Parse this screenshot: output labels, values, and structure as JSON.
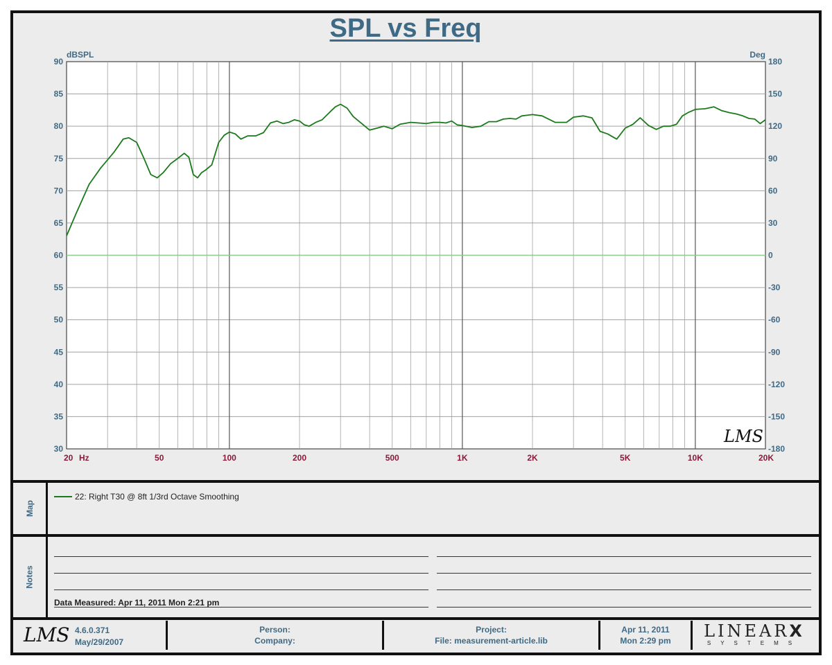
{
  "title": "SPL vs Freq",
  "chart_data": {
    "type": "line",
    "title": "SPL vs Freq",
    "xscale": "log",
    "xlim": [
      20,
      20000
    ],
    "ylim": [
      30,
      90
    ],
    "y2lim": [
      -180,
      180
    ],
    "ylabel": "dBSPL",
    "y2label": "Deg",
    "x_ticks": [
      {
        "value": 20,
        "label": "20"
      },
      {
        "value": 50,
        "label": "50"
      },
      {
        "value": 100,
        "label": "100"
      },
      {
        "value": 200,
        "label": "200"
      },
      {
        "value": 500,
        "label": "500"
      },
      {
        "value": 1000,
        "label": "1K"
      },
      {
        "value": 2000,
        "label": "2K"
      },
      {
        "value": 5000,
        "label": "5K"
      },
      {
        "value": 10000,
        "label": "10K"
      },
      {
        "value": 20000,
        "label": "20K"
      }
    ],
    "x_unit_label": "Hz",
    "y_ticks": [
      90,
      85,
      80,
      75,
      70,
      65,
      60,
      55,
      50,
      45,
      40,
      35,
      30
    ],
    "y2_ticks": [
      180,
      150,
      120,
      90,
      60,
      30,
      0,
      -30,
      -60,
      -90,
      -120,
      -150,
      -180
    ],
    "reference_line_y": 60,
    "grid": true,
    "series": [
      {
        "name": "22: Right T30 @ 8ft 1/3rd Octave Smoothing",
        "color": "#1a7a1a",
        "x": [
          20,
          22,
          25,
          28,
          32,
          35,
          37,
          40,
          43,
          46,
          49,
          52,
          56,
          60,
          64,
          67,
          70,
          73,
          76,
          79,
          84,
          90,
          95,
          100,
          106,
          112,
          120,
          130,
          140,
          150,
          160,
          170,
          180,
          190,
          200,
          210,
          220,
          235,
          250,
          270,
          285,
          300,
          320,
          340,
          370,
          400,
          430,
          460,
          500,
          540,
          600,
          650,
          700,
          750,
          800,
          850,
          900,
          950,
          1000,
          1100,
          1200,
          1300,
          1400,
          1500,
          1600,
          1700,
          1800,
          2000,
          2200,
          2500,
          2800,
          3000,
          3300,
          3600,
          3900,
          4200,
          4600,
          5000,
          5400,
          5800,
          6300,
          6800,
          7300,
          7800,
          8300,
          8800,
          9300,
          10000,
          11000,
          12000,
          13000,
          14000,
          15000,
          16000,
          17000,
          18000,
          19000,
          20000
        ],
        "y": [
          63,
          66.5,
          71,
          73.5,
          76,
          78,
          78.2,
          77.5,
          75,
          72.5,
          72,
          72.8,
          74.2,
          75,
          75.8,
          75.2,
          72.5,
          72,
          72.8,
          73.2,
          74,
          77.5,
          78.6,
          79.1,
          78.8,
          78,
          78.5,
          78.5,
          79,
          80.5,
          80.8,
          80.4,
          80.6,
          81,
          80.8,
          80.2,
          80,
          80.6,
          81,
          82.2,
          83,
          83.4,
          82.8,
          81.5,
          80.4,
          79.4,
          79.7,
          80,
          79.6,
          80.3,
          80.6,
          80.5,
          80.4,
          80.6,
          80.6,
          80.5,
          80.8,
          80.2,
          80.1,
          79.8,
          80,
          80.7,
          80.7,
          81.1,
          81.2,
          81.1,
          81.6,
          81.8,
          81.6,
          80.6,
          80.6,
          81.4,
          81.6,
          81.3,
          79.2,
          78.8,
          78,
          79.7,
          80.3,
          81.3,
          80.1,
          79.5,
          80,
          80,
          80.3,
          81.6,
          82.1,
          82.6,
          82.7,
          83,
          82.4,
          82.1,
          81.9,
          81.6,
          81.2,
          81.1,
          80.4,
          81
        ]
      }
    ]
  },
  "notes": {
    "panel_label": "Notes",
    "data_measured": "Data Measured: Apr 11, 2011  Mon  2:21 pm"
  },
  "map": {
    "panel_label": "Map"
  },
  "footer": {
    "logo_text": "LMS",
    "version": "4.6.0.371",
    "version_date": "May/29/2007",
    "person_label": "Person:",
    "company_label": "Company:",
    "project_label": "Project:",
    "file_label": "File: measurement-article.lib",
    "date": "Apr 11, 2011",
    "time": "Mon  2:29 pm",
    "brand_main": "LINEAR",
    "brand_x": "X",
    "brand_sub": "SYSTEMS"
  },
  "watermark": "LMS",
  "colors": {
    "axis_text": "#3f6a86",
    "x_tick_text": "#8b1a3a",
    "series": "#1a7a1a",
    "reference_line": "#8fc88f",
    "grid": "#a0a0a0"
  }
}
